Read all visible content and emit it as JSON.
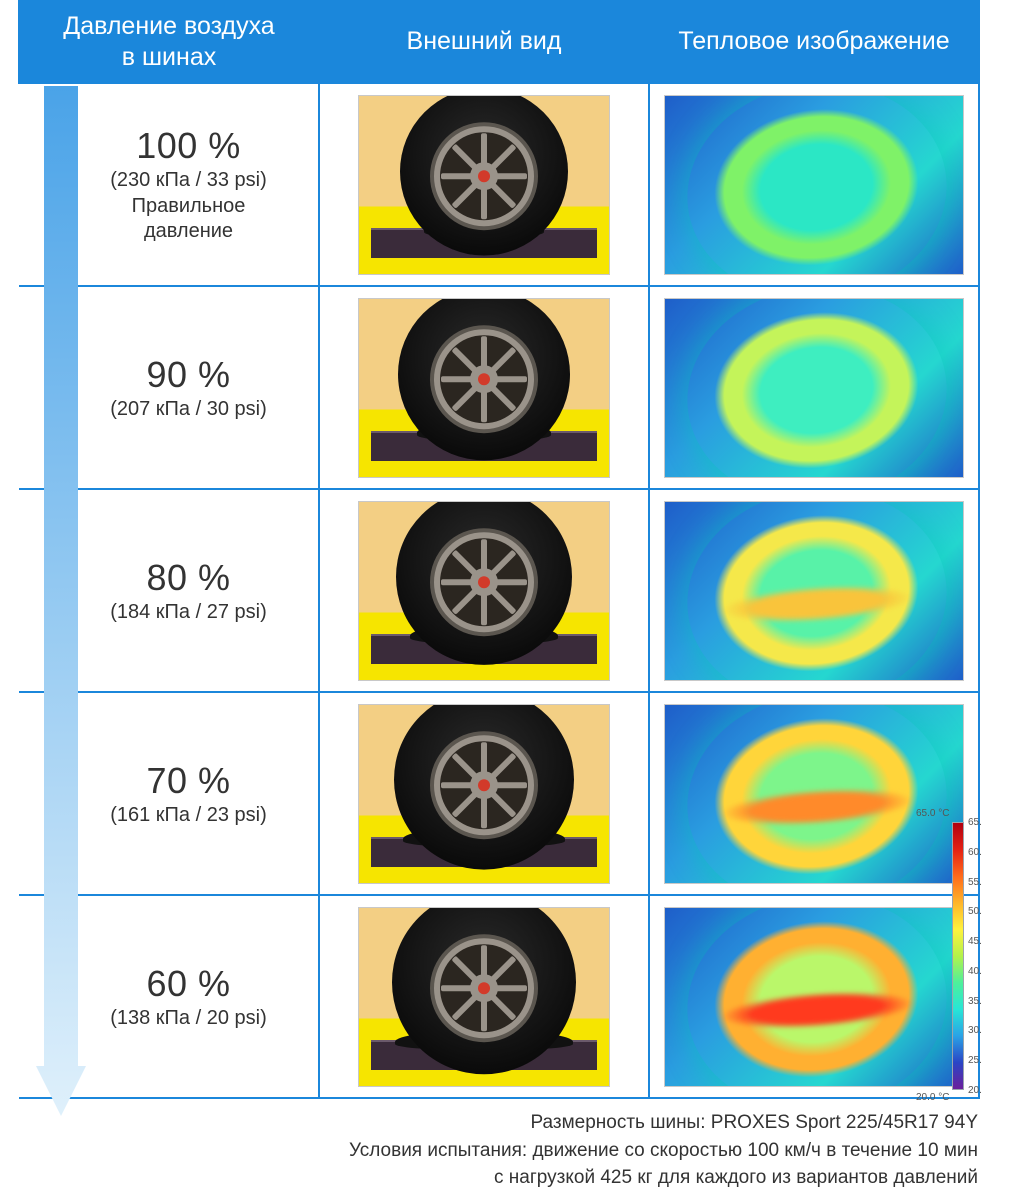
{
  "headers": {
    "pressure": "Давление воздуха\nв шинах",
    "appearance": "Внешний вид",
    "thermal": "Тепловое изображение"
  },
  "header_bg": "#1b87db",
  "header_fg": "#ffffff",
  "border_color": "#1b87db",
  "arrow_gradient_top": "#4aa3e8",
  "arrow_gradient_bottom": "#dff0fb",
  "rows": [
    {
      "percent": "100 %",
      "psi": "(230 кПа / 33 psi)",
      "note": "Правильное\nдавление",
      "rubber_diameter": 168,
      "bulge_width": 120,
      "thermal_center": "#2be7c5",
      "thermal_ring": "#7ff268",
      "thermal_band": null
    },
    {
      "percent": "90 %",
      "psi": "(207 кПа / 30 psi)",
      "note": "",
      "rubber_diameter": 172,
      "bulge_width": 134,
      "thermal_center": "#3eeec0",
      "thermal_ring": "#c4f45a",
      "thermal_band": null
    },
    {
      "percent": "80 %",
      "psi": "(184 кПа / 27 psi)",
      "note": "",
      "rubber_diameter": 176,
      "bulge_width": 148,
      "thermal_center": "#58f2a8",
      "thermal_ring": "#f5e84a",
      "thermal_band": "#f9c43b"
    },
    {
      "percent": "70 %",
      "psi": "(161 кПа / 23 psi)",
      "note": "",
      "rubber_diameter": 180,
      "bulge_width": 162,
      "thermal_center": "#7df58b",
      "thermal_ring": "#ffd53a",
      "thermal_band": "#ff8a2a"
    },
    {
      "percent": "60 %",
      "psi": "(138 кПа / 20 psi)",
      "note": "",
      "rubber_diameter": 184,
      "bulge_width": 178,
      "thermal_center": "#baf76a",
      "thermal_ring": "#ffb031",
      "thermal_band": "#ff3a1e"
    }
  ],
  "legend": {
    "top_label": "65.0 °C",
    "bottom_label": "20.0 °C",
    "ticks": [
      "65.",
      "60.",
      "55.",
      "50.",
      "45.",
      "40.",
      "35.",
      "30.",
      "25.",
      "20."
    ],
    "colors": [
      "#b10010",
      "#e42114",
      "#ff6a1a",
      "#ffb52a",
      "#fff23c",
      "#b3f24a",
      "#4ef09b",
      "#28e6d6",
      "#2aa3e6",
      "#2a46c6",
      "#6b1f9c"
    ]
  },
  "tire_scene": {
    "bg_top": "#f3cf84",
    "bg_bottom": "#f6e500",
    "platform_color": "#3a2b3a",
    "rubber_color": "#111111",
    "rim_color": "#9a938a",
    "rim_dark": "#5b564f",
    "hub_color": "#d23a2a"
  },
  "footer": {
    "line1": "Размерность шины: PROXES Sport 225/45R17 94Y",
    "line2": "Условия испытания: движение со скоростью 100 км/ч в течение 10 мин",
    "line3": "с нагрузкой 425 кг для каждого из вариантов давлений"
  }
}
